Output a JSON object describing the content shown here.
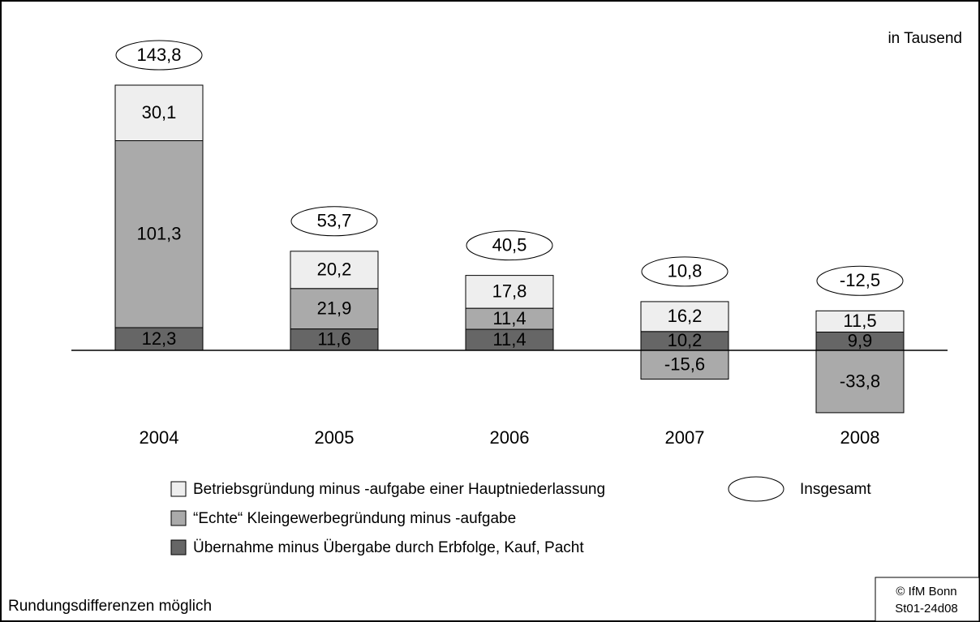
{
  "chart_data": {
    "type": "stacked-bar",
    "unit_note": "in Tausend",
    "footnote": "Rundungsdifferenzen möglich",
    "source": [
      "© IfM Bonn",
      "St01-24d08"
    ],
    "categories": [
      "2004",
      "2005",
      "2006",
      "2007",
      "2008"
    ],
    "series": [
      {
        "name": "Übernahme minus Übergabe durch Erbfolge, Kauf, Pacht",
        "color": "#666666",
        "values": [
          12.3,
          11.6,
          11.4,
          10.2,
          9.9
        ],
        "value_labels": [
          "12,3",
          "11,6",
          "11,4",
          "10,2",
          "9,9"
        ]
      },
      {
        "name": "“Echte“ Kleingewerbegründung minus -aufgabe",
        "color": "#aaaaaa",
        "values": [
          101.3,
          21.9,
          11.4,
          -15.6,
          -33.8
        ],
        "value_labels": [
          "101,3",
          "21,9",
          "11,4",
          "-15,6",
          "-33,8"
        ]
      },
      {
        "name": "Betriebsgründung minus -aufgabe einer Hauptniederlassung",
        "color": "#eeeeee",
        "values": [
          30.1,
          20.2,
          17.8,
          16.2,
          11.5
        ],
        "value_labels": [
          "30,1",
          "20,2",
          "17,8",
          "16,2",
          "11,5"
        ]
      }
    ],
    "totals": {
      "name": "Insgesamt",
      "values": [
        143.8,
        53.7,
        40.5,
        10.8,
        -12.5
      ],
      "value_labels": [
        "143,8",
        "53,7",
        "40,5",
        "10,8",
        "-12,5"
      ]
    }
  }
}
